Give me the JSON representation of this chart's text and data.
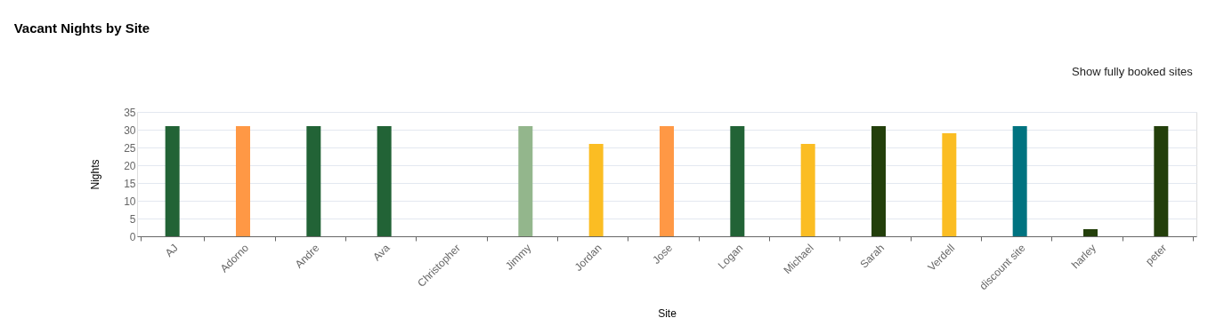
{
  "chart_data": {
    "type": "bar",
    "title": "Vacant Nights by Site",
    "xlabel": "Site",
    "ylabel": "Nights",
    "categories": [
      "AJ",
      "Adorno",
      "Andre",
      "Ava",
      "Christopher",
      "Jimmy",
      "Jordan",
      "Jose",
      "Logan",
      "Michael",
      "Sarah",
      "Verdell",
      "discount site",
      "harley",
      "peter"
    ],
    "values": [
      31,
      31,
      31,
      31,
      0,
      31,
      26,
      31,
      31,
      26,
      31,
      29,
      31,
      2,
      31
    ],
    "colors": [
      "#226336",
      "#ff9845",
      "#226336",
      "#226336",
      "#226336",
      "#93b68c",
      "#fbbd23",
      "#ff9845",
      "#226336",
      "#fbbd23",
      "#233f0b",
      "#fbbd23",
      "#007380",
      "#233f0b",
      "#233f0b"
    ],
    "ylim": [
      0,
      35
    ],
    "yticks": [
      0,
      5,
      10,
      15,
      20,
      25,
      30,
      35
    ],
    "grid": "y",
    "annotations": [
      "Show fully booked sites"
    ]
  }
}
